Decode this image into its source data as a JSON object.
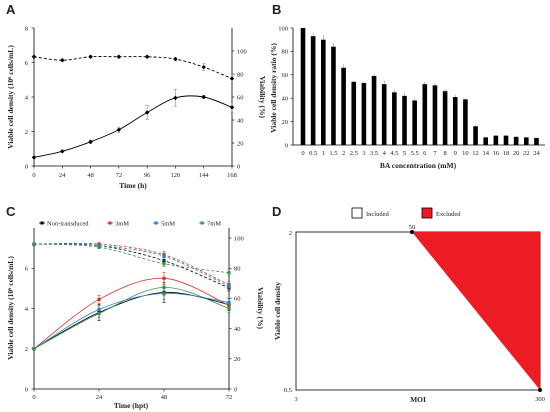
{
  "panels": {
    "A": "A",
    "B": "B",
    "C": "C",
    "D": "D"
  },
  "chart_data": [
    {
      "panel": "A",
      "type": "line",
      "xlabel": "Time (h)",
      "ylabel": "Viable cell density (10⁶ cells/mL)",
      "y2label": "Viability (%)",
      "x_ticks": [
        0,
        24,
        48,
        72,
        96,
        120,
        144,
        168
      ],
      "y_ticks": [
        0,
        2,
        4,
        6,
        8
      ],
      "y2_ticks": [
        0,
        20,
        40,
        60,
        80,
        100
      ],
      "xlim": [
        0,
        168
      ],
      "ylim": [
        0,
        8
      ],
      "y2lim": [
        0,
        120
      ],
      "series": [
        {
          "axis": "left",
          "style": "solid",
          "color": "#000000",
          "marker": "diamond",
          "x": [
            0,
            24,
            48,
            72,
            96,
            120,
            144,
            168
          ],
          "y": [
            0.5,
            0.85,
            1.4,
            2.1,
            3.1,
            3.95,
            4.0,
            3.4
          ],
          "err": [
            0.05,
            0.05,
            0.1,
            0.15,
            0.4,
            0.5,
            0.1,
            0.3
          ]
        },
        {
          "axis": "right",
          "style": "dashed",
          "color": "#000000",
          "marker": "diamond",
          "x": [
            0,
            24,
            48,
            72,
            96,
            120,
            144,
            168
          ],
          "y": [
            95,
            92,
            95,
            95,
            95,
            93,
            86,
            76
          ],
          "err": [
            1,
            1,
            1,
            1,
            1,
            1.5,
            3,
            4
          ]
        }
      ]
    },
    {
      "panel": "B",
      "type": "bar",
      "xlabel": "BA concentration (mM)",
      "ylabel": "Viable cell density ratio (%)",
      "categories": [
        "0",
        "0.5",
        "1",
        "1.5",
        "2",
        "2.5",
        "3",
        "3.5",
        "4",
        "4.5",
        "5",
        "5.5",
        "6",
        "7",
        "8",
        "9",
        "10",
        "12",
        "14",
        "16",
        "18",
        "20",
        "22",
        "24"
      ],
      "values": [
        100,
        93,
        90,
        84,
        66,
        54,
        53,
        59,
        52,
        45,
        42,
        38,
        52,
        51,
        46,
        41,
        39,
        16,
        6.5,
        8,
        8,
        7,
        6.5,
        6
      ],
      "err": [
        0,
        3,
        4,
        3,
        3,
        1,
        1,
        2,
        3,
        2,
        3,
        2,
        2,
        2,
        2,
        2,
        1,
        1,
        0.5,
        0.5,
        0.5,
        0.5,
        0.5,
        0.5
      ],
      "y_ticks": [
        0,
        20,
        40,
        60,
        80,
        100
      ],
      "ylim": [
        0,
        100
      ]
    },
    {
      "panel": "C",
      "type": "line",
      "xlabel": "Time (hpt)",
      "ylabel": "Viable cell density (10⁶ cells/mL)",
      "y2label": "Viability (%)",
      "x_ticks": [
        0,
        24,
        48,
        72
      ],
      "y_ticks": [
        0,
        2,
        4,
        6
      ],
      "y2_ticks": [
        0,
        20,
        40,
        60,
        80,
        100
      ],
      "xlim": [
        0,
        72
      ],
      "ylim": [
        0,
        8
      ],
      "y2lim": [
        0,
        106.67
      ],
      "legend": "top",
      "series": [
        {
          "name": "Non-transduced",
          "color": "#000000",
          "x": [
            0,
            24,
            48,
            72
          ],
          "vcd": [
            2,
            3.8,
            4.8,
            4.2
          ],
          "vcd_err": [
            0.05,
            0.4,
            0.5,
            0.3
          ],
          "viability": [
            96,
            95,
            85,
            67
          ],
          "via_err": [
            0.5,
            1,
            2,
            2
          ]
        },
        {
          "name": "3mM",
          "color": "#d93025",
          "x": [
            0,
            24,
            48,
            72
          ],
          "vcd": [
            2,
            4.45,
            5.5,
            4.15
          ],
          "vcd_err": [
            0.05,
            0.2,
            0.3,
            0.2
          ],
          "viability": [
            96,
            96,
            89,
            69
          ],
          "via_err": [
            0.5,
            1,
            2,
            2
          ]
        },
        {
          "name": "5mM",
          "color": "#2a7fc9",
          "x": [
            0,
            24,
            48,
            72
          ],
          "vcd": [
            2,
            3.95,
            4.75,
            4.3
          ],
          "vcd_err": [
            0.05,
            0.2,
            0.3,
            0.2
          ],
          "viability": [
            96,
            95,
            88,
            68
          ],
          "via_err": [
            0.5,
            1,
            2,
            2
          ]
        },
        {
          "name": "7mM",
          "color": "#3a8f4f",
          "x": [
            0,
            24,
            48,
            72
          ],
          "vcd": [
            2,
            3.75,
            5.05,
            4.0
          ],
          "vcd_err": [
            0.05,
            0.2,
            0.4,
            0.2
          ],
          "viability": [
            96,
            94,
            83,
            77
          ],
          "via_err": [
            0.5,
            1,
            2,
            2
          ]
        }
      ]
    },
    {
      "panel": "D",
      "type": "area",
      "xlabel": "MOI",
      "ylabel": "Viable cell density",
      "x_ticks": [
        "3",
        "300"
      ],
      "y_ticks": [
        "0.5",
        "2"
      ],
      "annotation": "50",
      "legend": [
        {
          "label": "Included",
          "color": "#ffffff"
        },
        {
          "label": "Excluded",
          "color": "#ed1c24"
        }
      ],
      "excluded_region": [
        [
          "50",
          "2"
        ],
        [
          "300",
          "2"
        ],
        [
          "300",
          "0.5"
        ]
      ]
    }
  ]
}
